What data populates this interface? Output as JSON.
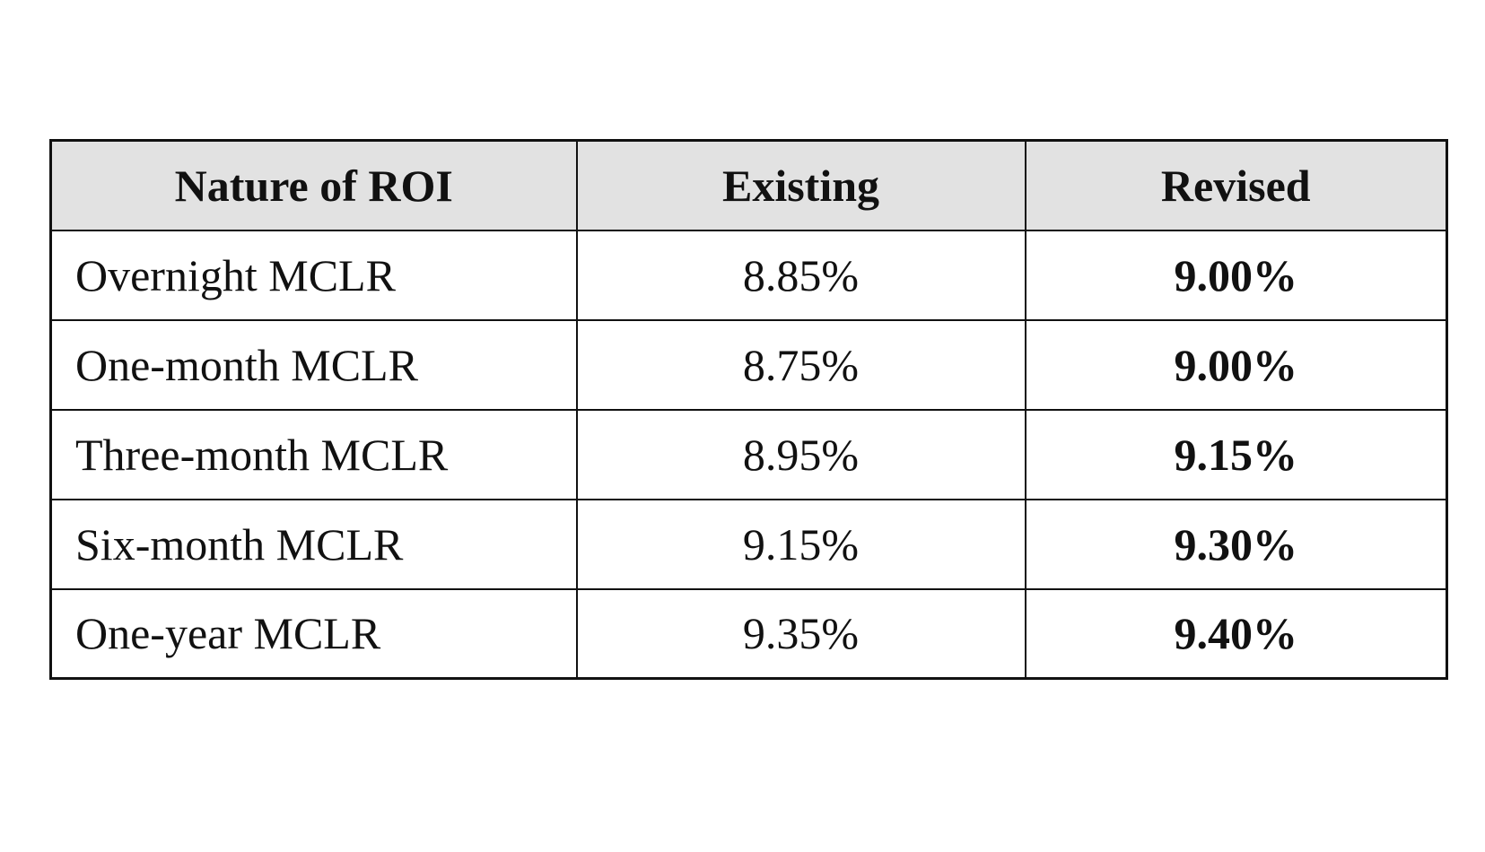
{
  "table": {
    "headers": {
      "nature": "Nature of ROI",
      "existing": "Existing",
      "revised": "Revised"
    },
    "rows": [
      {
        "name": "Overnight MCLR",
        "existing": "8.85%",
        "revised": "9.00%"
      },
      {
        "name": "One-month MCLR",
        "existing": "8.75%",
        "revised": "9.00%"
      },
      {
        "name": "Three-month MCLR",
        "existing": "8.95%",
        "revised": "9.15%"
      },
      {
        "name": "Six-month MCLR",
        "existing": "9.15%",
        "revised": "9.30%"
      },
      {
        "name": "One-year MCLR",
        "existing": "9.35%",
        "revised": "9.40%"
      }
    ]
  },
  "colors": {
    "header_background": "#e2e2e2",
    "border": "#111111",
    "text": "#111111"
  }
}
